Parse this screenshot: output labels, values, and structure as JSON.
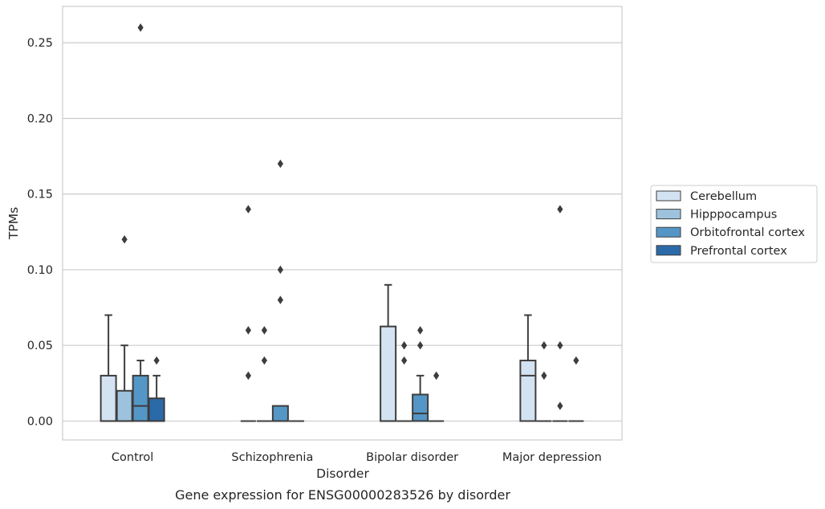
{
  "chart_data": {
    "type": "box",
    "title": "",
    "caption": "Gene expression for ENSG00000283526 by disorder",
    "xlabel": "Disorder",
    "ylabel": "TPMs",
    "ylim": [
      -0.0125,
      0.274
    ],
    "yticks": [
      0.0,
      0.05,
      0.1,
      0.15,
      0.2,
      0.25
    ],
    "ytick_labels": [
      "0.00",
      "0.05",
      "0.10",
      "0.15",
      "0.20",
      "0.25"
    ],
    "grid": "horizontal",
    "legend_placement": "outside-right",
    "categories": [
      "Control",
      "Schizophrenia",
      "Bipolar disorder",
      "Major depression"
    ],
    "series": [
      {
        "name": "Cerebellum",
        "color": "#d4e3f2",
        "boxes": [
          {
            "q1": 0.0,
            "median": 0.0,
            "q3": 0.03,
            "whisker_low": 0.0,
            "whisker_high": 0.07,
            "outliers": []
          },
          {
            "q1": 0.0,
            "median": 0.0,
            "q3": 0.0,
            "whisker_low": 0.0,
            "whisker_high": 0.0,
            "outliers": [
              0.03,
              0.06,
              0.14
            ]
          },
          {
            "q1": 0.0,
            "median": 0.0,
            "q3": 0.0625,
            "whisker_low": 0.0,
            "whisker_high": 0.09,
            "outliers": []
          },
          {
            "q1": 0.0,
            "median": 0.03,
            "q3": 0.04,
            "whisker_low": 0.0,
            "whisker_high": 0.07,
            "outliers": []
          }
        ]
      },
      {
        "name": "Hipppocampus",
        "color": "#9dc2dd",
        "boxes": [
          {
            "q1": 0.0,
            "median": 0.0,
            "q3": 0.02,
            "whisker_low": 0.0,
            "whisker_high": 0.05,
            "outliers": [
              0.12
            ]
          },
          {
            "q1": 0.0,
            "median": 0.0,
            "q3": 0.0,
            "whisker_low": 0.0,
            "whisker_high": 0.0,
            "outliers": [
              0.04,
              0.06
            ]
          },
          {
            "q1": 0.0,
            "median": 0.0,
            "q3": 0.0,
            "whisker_low": 0.0,
            "whisker_high": 0.0,
            "outliers": [
              0.04,
              0.05
            ]
          },
          {
            "q1": 0.0,
            "median": 0.0,
            "q3": 0.0,
            "whisker_low": 0.0,
            "whisker_high": 0.0,
            "outliers": [
              0.03,
              0.05
            ]
          }
        ]
      },
      {
        "name": "Orbitofrontal cortex",
        "color": "#5497c6",
        "boxes": [
          {
            "q1": 0.0,
            "median": 0.01,
            "q3": 0.03,
            "whisker_low": 0.0,
            "whisker_high": 0.04,
            "outliers": [
              0.26
            ]
          },
          {
            "q1": 0.0,
            "median": 0.0,
            "q3": 0.01,
            "whisker_low": 0.0,
            "whisker_high": 0.01,
            "outliers": [
              0.08,
              0.1,
              0.17
            ]
          },
          {
            "q1": 0.0,
            "median": 0.005,
            "q3": 0.0175,
            "whisker_low": 0.0,
            "whisker_high": 0.03,
            "outliers": [
              0.05,
              0.06
            ]
          },
          {
            "q1": 0.0,
            "median": 0.0,
            "q3": 0.0,
            "whisker_low": 0.0,
            "whisker_high": 0.0,
            "outliers": [
              0.01,
              0.05,
              0.14
            ]
          }
        ]
      },
      {
        "name": "Prefrontal cortex",
        "color": "#2b6aa8",
        "boxes": [
          {
            "q1": 0.0,
            "median": 0.0,
            "q3": 0.015,
            "whisker_low": 0.0,
            "whisker_high": 0.03,
            "outliers": [
              0.04
            ]
          },
          {
            "q1": 0.0,
            "median": 0.0,
            "q3": 0.0,
            "whisker_low": 0.0,
            "whisker_high": 0.0,
            "outliers": []
          },
          {
            "q1": 0.0,
            "median": 0.0,
            "q3": 0.0,
            "whisker_low": 0.0,
            "whisker_high": 0.0,
            "outliers": [
              0.03
            ]
          },
          {
            "q1": 0.0,
            "median": 0.0,
            "q3": 0.0,
            "whisker_low": 0.0,
            "whisker_high": 0.0,
            "outliers": [
              0.04
            ]
          }
        ]
      }
    ]
  }
}
